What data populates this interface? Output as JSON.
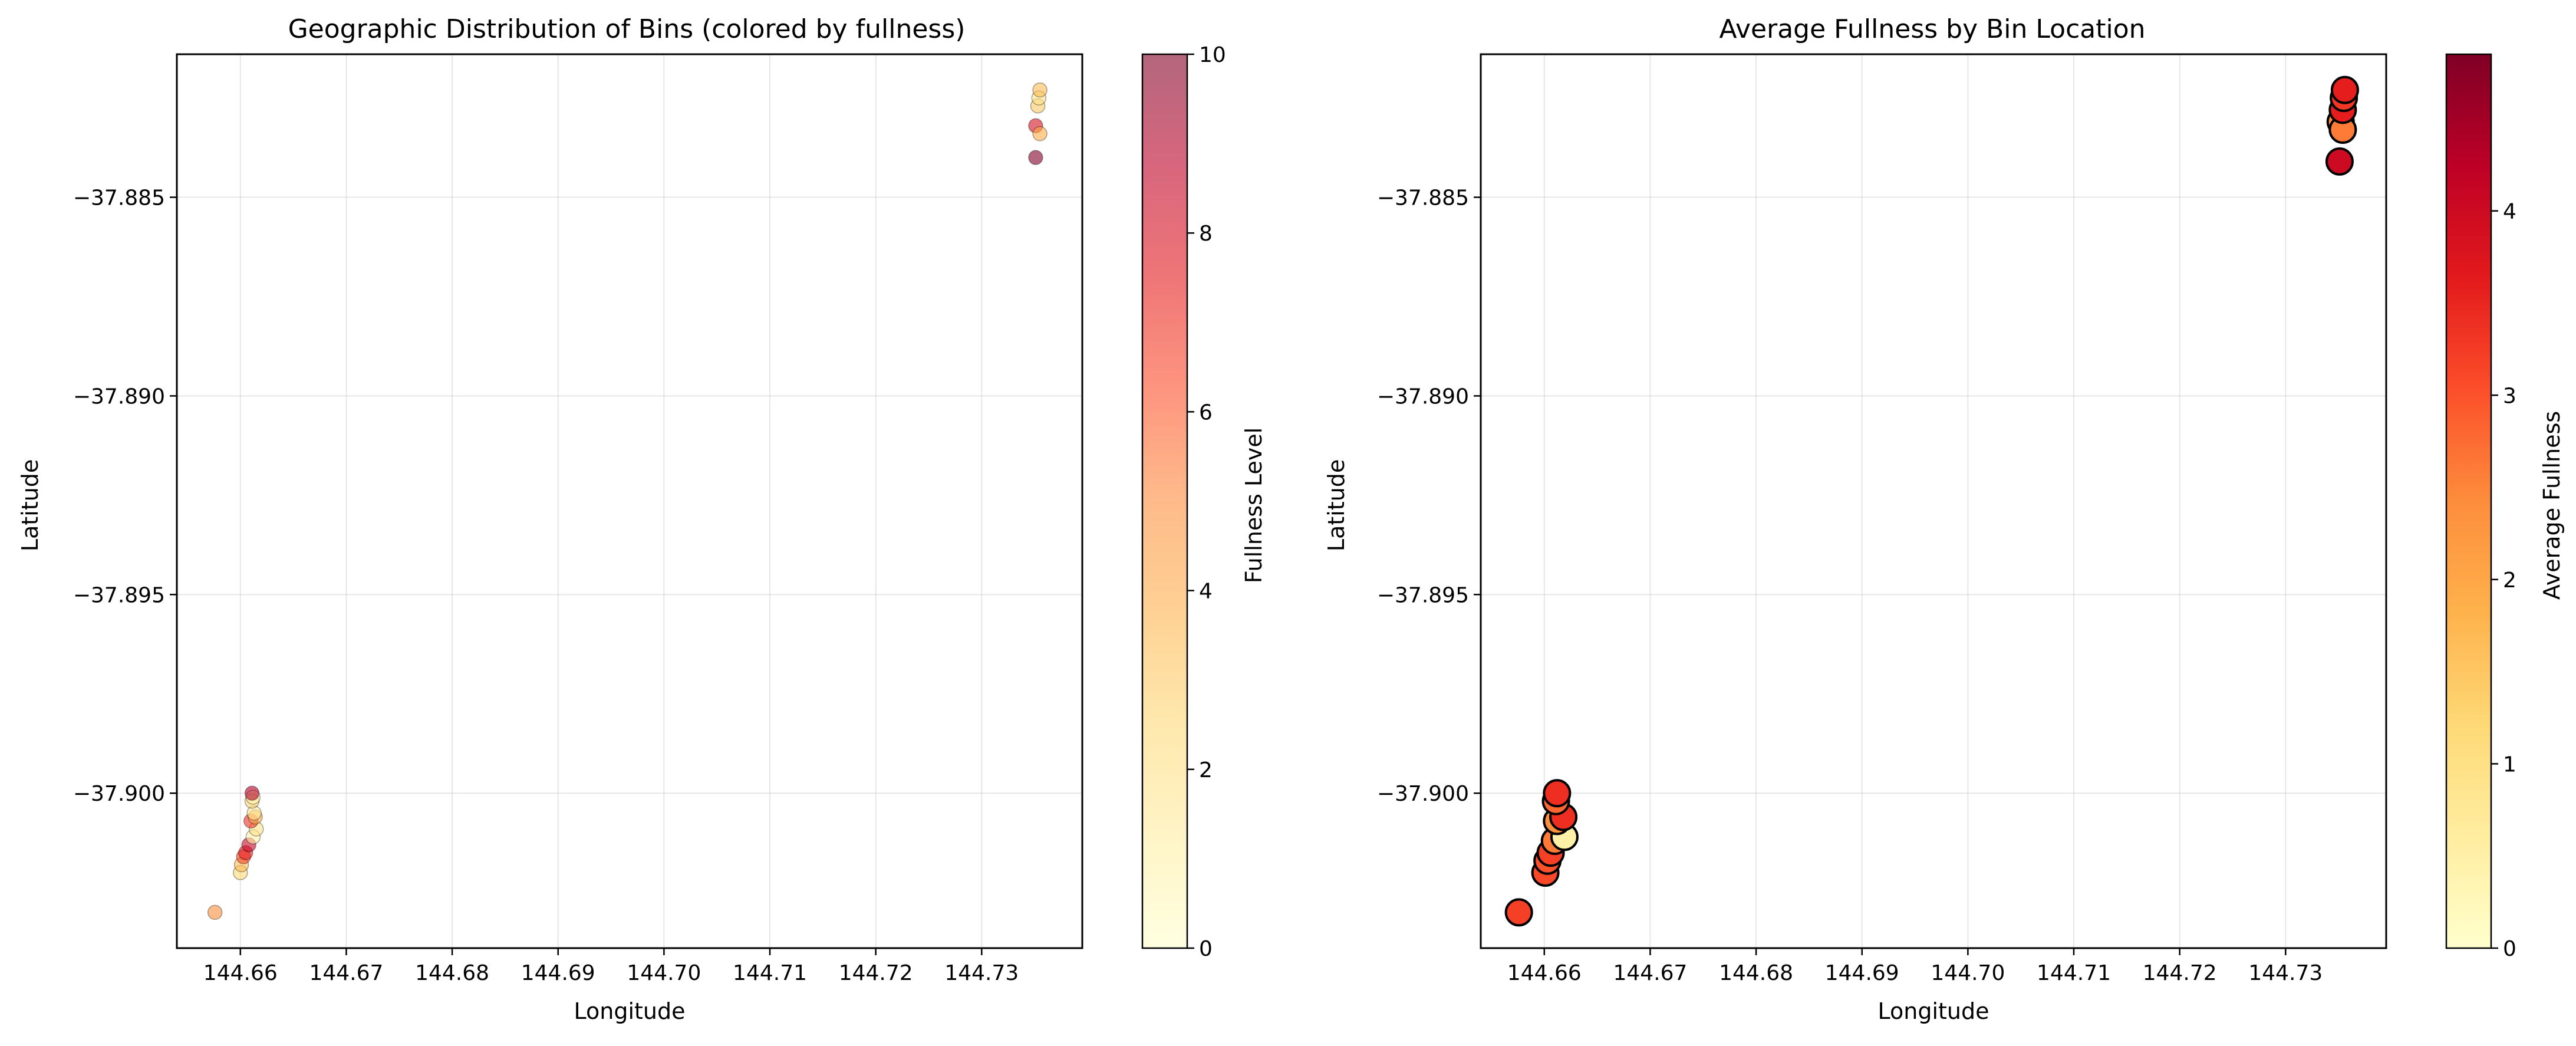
{
  "chart_data": [
    {
      "type": "scatter",
      "title": "Geographic Distribution of Bins (colored by fullness)",
      "xlabel": "Longitude",
      "ylabel": "Latitude",
      "xlim": [
        144.654,
        144.7395
      ],
      "ylim": [
        -37.9039,
        -37.8814
      ],
      "xticks": [
        144.66,
        144.67,
        144.68,
        144.69,
        144.7,
        144.71,
        144.72,
        144.73
      ],
      "xtick_labels": [
        "144.66",
        "144.67",
        "144.68",
        "144.69",
        "144.70",
        "144.71",
        "144.72",
        "144.73"
      ],
      "yticks": [
        -37.885,
        -37.89,
        -37.895,
        -37.9
      ],
      "ytick_labels": [
        "−37.885",
        "−37.890",
        "−37.895",
        "−37.900"
      ],
      "grid": true,
      "colormap": "YlOrRd",
      "marker_alpha": 0.6,
      "colorbar": {
        "label": "Fullness Level",
        "range": [
          0,
          10
        ],
        "ticks": [
          0,
          2,
          4,
          6,
          8,
          10
        ]
      },
      "points": [
        {
          "x": 144.6576,
          "y": -37.903,
          "v": 5.0
        },
        {
          "x": 144.66,
          "y": -37.902,
          "v": 2.5
        },
        {
          "x": 144.6601,
          "y": -37.9018,
          "v": 3.5
        },
        {
          "x": 144.6603,
          "y": -37.9016,
          "v": 6.5
        },
        {
          "x": 144.6605,
          "y": -37.9015,
          "v": 7.5
        },
        {
          "x": 144.6608,
          "y": -37.9013,
          "v": 8.5
        },
        {
          "x": 144.6612,
          "y": -37.9011,
          "v": 1.0
        },
        {
          "x": 144.6615,
          "y": -37.9009,
          "v": 2.0
        },
        {
          "x": 144.661,
          "y": -37.9007,
          "v": 7.0
        },
        {
          "x": 144.6614,
          "y": -37.9006,
          "v": 4.0
        },
        {
          "x": 144.6613,
          "y": -37.9005,
          "v": 1.5
        },
        {
          "x": 144.6611,
          "y": -37.9002,
          "v": 2.5
        },
        {
          "x": 144.6612,
          "y": -37.9001,
          "v": 0.8
        },
        {
          "x": 144.6611,
          "y": -37.9,
          "v": 9.0
        },
        {
          "x": 144.7351,
          "y": -37.884,
          "v": 10.0
        },
        {
          "x": 144.7351,
          "y": -37.8832,
          "v": 8.0
        },
        {
          "x": 144.7355,
          "y": -37.8834,
          "v": 4.0
        },
        {
          "x": 144.7353,
          "y": -37.8827,
          "v": 3.0
        },
        {
          "x": 144.7354,
          "y": -37.8825,
          "v": 2.0
        },
        {
          "x": 144.7355,
          "y": -37.8823,
          "v": 3.5
        }
      ]
    },
    {
      "type": "scatter",
      "title": "Average Fullness by Bin Location",
      "xlabel": "Longitude",
      "ylabel": "Latitude",
      "xlim": [
        144.654,
        144.7395
      ],
      "ylim": [
        -37.9039,
        -37.8814
      ],
      "xticks": [
        144.66,
        144.67,
        144.68,
        144.69,
        144.7,
        144.71,
        144.72,
        144.73
      ],
      "xtick_labels": [
        "144.66",
        "144.67",
        "144.68",
        "144.69",
        "144.70",
        "144.71",
        "144.72",
        "144.73"
      ],
      "yticks": [
        -37.885,
        -37.89,
        -37.895,
        -37.9
      ],
      "ytick_labels": [
        "−37.885",
        "−37.890",
        "−37.895",
        "−37.900"
      ],
      "grid": true,
      "colormap": "YlOrRd",
      "marker_alpha": 1.0,
      "colorbar": {
        "label": "Average Fullness",
        "range": [
          0,
          4.85
        ],
        "ticks": [
          0,
          1,
          2,
          3,
          4
        ]
      },
      "points": [
        {
          "x": 144.6576,
          "y": -37.903,
          "v": 3.2
        },
        {
          "x": 144.6601,
          "y": -37.902,
          "v": 3.1
        },
        {
          "x": 144.6603,
          "y": -37.9017,
          "v": 3.0
        },
        {
          "x": 144.6606,
          "y": -37.9015,
          "v": 3.2
        },
        {
          "x": 144.661,
          "y": -37.9012,
          "v": 2.6
        },
        {
          "x": 144.6619,
          "y": -37.9011,
          "v": 0.5
        },
        {
          "x": 144.6612,
          "y": -37.9007,
          "v": 2.4
        },
        {
          "x": 144.6618,
          "y": -37.9006,
          "v": 3.4
        },
        {
          "x": 144.6611,
          "y": -37.9002,
          "v": 2.8
        },
        {
          "x": 144.6612,
          "y": -37.9,
          "v": 3.4
        },
        {
          "x": 144.7351,
          "y": -37.8841,
          "v": 4.0
        },
        {
          "x": 144.7352,
          "y": -37.8831,
          "v": 2.4
        },
        {
          "x": 144.7354,
          "y": -37.8833,
          "v": 2.6
        },
        {
          "x": 144.7354,
          "y": -37.8828,
          "v": 3.6
        },
        {
          "x": 144.7355,
          "y": -37.8825,
          "v": 3.3
        },
        {
          "x": 144.7356,
          "y": -37.8823,
          "v": 3.6
        }
      ]
    }
  ]
}
